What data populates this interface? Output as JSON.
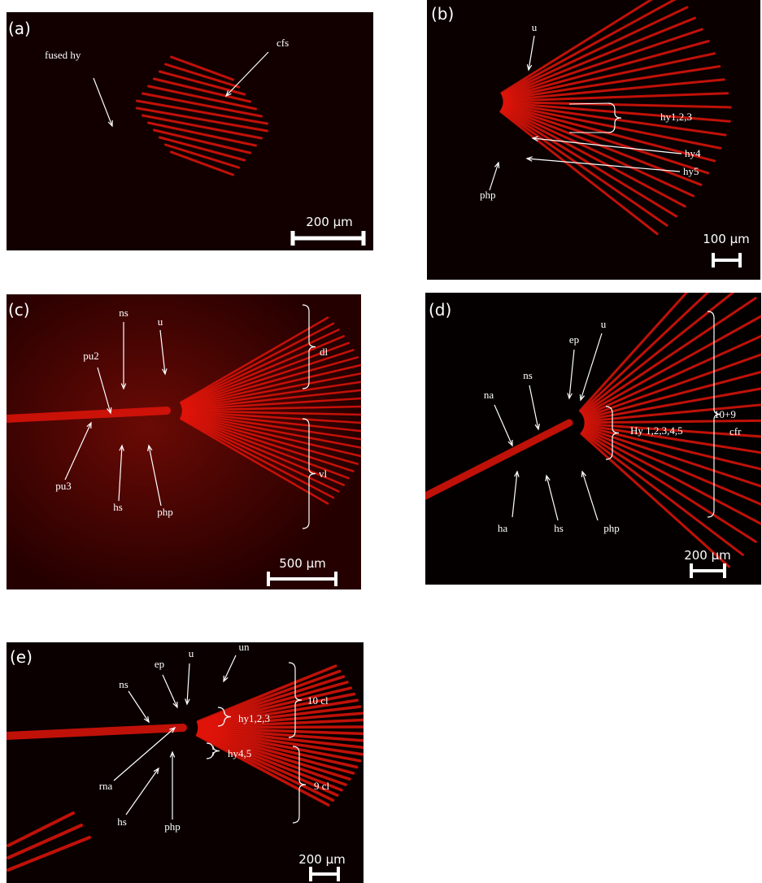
{
  "panels": [
    {
      "letter": "(a)",
      "labels": [
        "fused hy",
        "cfs"
      ],
      "scale_bar": "200 µm"
    },
    {
      "letter": "(b)",
      "labels": [
        "u",
        "hy1,2,3",
        "hy4",
        "hy5",
        "php"
      ],
      "scale_bar": "100 µm"
    },
    {
      "letter": "(c)",
      "labels": [
        "ns",
        "u",
        "pu2",
        "dl",
        "pu3",
        "hs",
        "php",
        "vl"
      ],
      "scale_bar": "500 µm"
    },
    {
      "letter": "(d)",
      "labels": [
        "ep",
        "u",
        "ns",
        "na",
        "Hy 1,2,3,4,5",
        "10+9",
        "cfr",
        "ha",
        "hs",
        "php"
      ],
      "scale_bar": "200 µm"
    },
    {
      "letter": "(e)",
      "labels": [
        "ep",
        "u",
        "un",
        "ns",
        "10 cl",
        "hy1,2,3",
        "hy4,5",
        "9 cl",
        "rna",
        "hs",
        "php"
      ],
      "scale_bar": "200 µm"
    }
  ]
}
